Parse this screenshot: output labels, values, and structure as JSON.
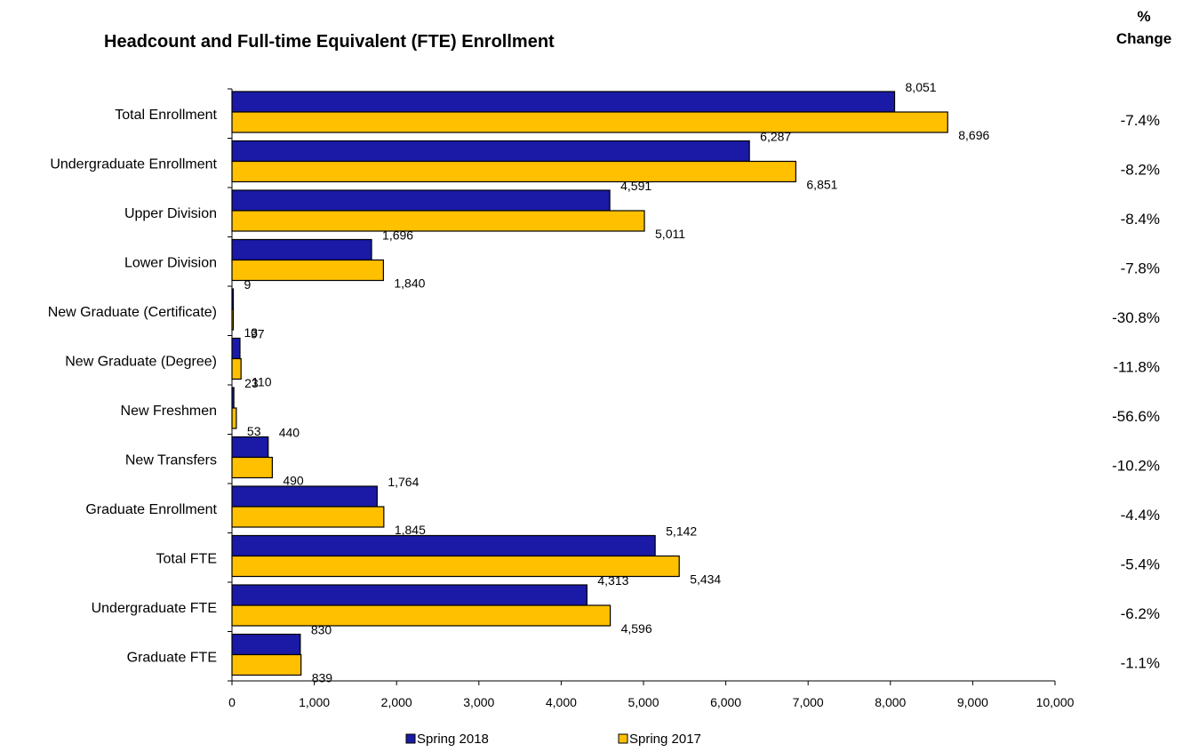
{
  "chart_data": {
    "type": "bar",
    "orientation": "horizontal",
    "title": "Headcount and Full-time Equivalent (FTE) Enrollment",
    "pct_change_header": [
      "%",
      "Change"
    ],
    "categories": [
      "Total Enrollment",
      "Undergraduate Enrollment",
      "Upper Division",
      "Lower Division",
      "New Graduate (Certificate)",
      "New Graduate (Degree)",
      "New Freshmen",
      "New Transfers",
      "Graduate Enrollment",
      "Total FTE",
      "Undergraduate FTE",
      "Graduate FTE"
    ],
    "series": [
      {
        "name": "Spring 2018",
        "color": "#1A1AA6",
        "values": [
          8051,
          6287,
          4591,
          1696,
          9,
          97,
          23,
          440,
          1764,
          5142,
          4313,
          830
        ],
        "labels": [
          "8,051",
          "6,287",
          "4,591",
          "1,696",
          "9",
          "97",
          "23",
          "440",
          "1,764",
          "5,142",
          "4,313",
          "830"
        ]
      },
      {
        "name": "Spring 2017",
        "color": "#FFC000",
        "values": [
          8696,
          6851,
          5011,
          1840,
          13,
          110,
          53,
          490,
          1845,
          5434,
          4596,
          839
        ],
        "labels": [
          "8,696",
          "6,851",
          "5,011",
          "1,840",
          "13",
          "110",
          "53",
          "490",
          "1,845",
          "5,434",
          "4,596",
          "839"
        ]
      }
    ],
    "pct_change": [
      "-7.4%",
      "-8.2%",
      "-8.4%",
      "-7.8%",
      "-30.8%",
      "-11.8%",
      "-56.6%",
      "-10.2%",
      "-4.4%",
      "-5.4%",
      "-6.2%",
      "-1.1%"
    ],
    "xlim": [
      0,
      10000
    ],
    "xticks": [
      0,
      1000,
      2000,
      3000,
      4000,
      5000,
      6000,
      7000,
      8000,
      9000,
      10000
    ],
    "xtick_labels": [
      "0",
      "1,000",
      "2,000",
      "3,000",
      "4,000",
      "5,000",
      "6,000",
      "7,000",
      "8,000",
      "9,000",
      "10,000"
    ],
    "grid": false,
    "legend_position": "bottom"
  }
}
